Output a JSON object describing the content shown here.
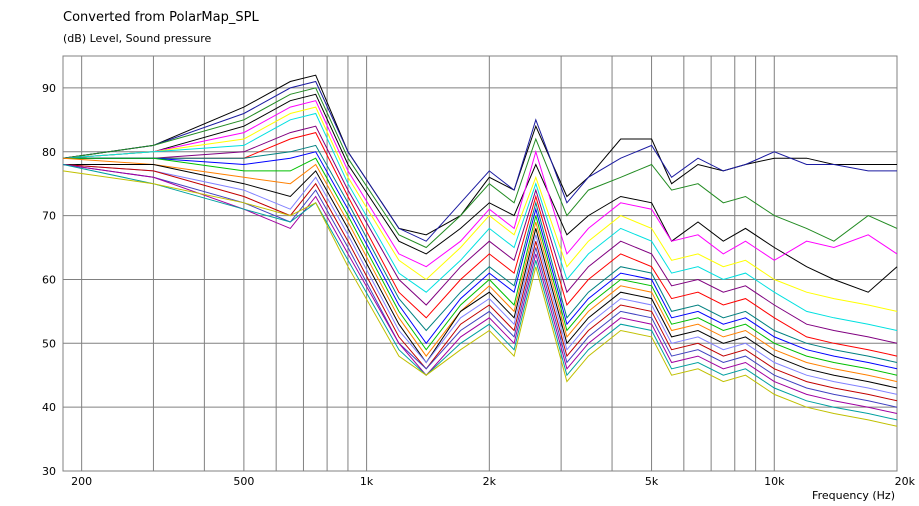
{
  "chart_data": {
    "type": "line",
    "title": "Converted from PolarMap_SPL",
    "ylabel": "(dB)  Level, Sound pressure",
    "xlabel": "Frequency  (Hz)",
    "xscale": "log",
    "xlim": [
      180,
      20000
    ],
    "ylim": [
      30,
      95
    ],
    "grid": true,
    "x_tick_labels": [
      {
        "value": 200,
        "label": "200"
      },
      {
        "value": 500,
        "label": "500"
      },
      {
        "value": 1000,
        "label": "1k"
      },
      {
        "value": 2000,
        "label": "2k"
      },
      {
        "value": 5000,
        "label": "5k"
      },
      {
        "value": 10000,
        "label": "10k"
      },
      {
        "value": 20000,
        "label": "20k"
      }
    ],
    "y_ticks": [
      30,
      40,
      50,
      60,
      70,
      80,
      90
    ],
    "series": [
      {
        "color": "#000000",
        "x": [
          180,
          300,
          500,
          650,
          750,
          900,
          1200,
          1400,
          1700,
          2000,
          2300,
          2600,
          3100,
          3500,
          4200,
          5000,
          5600,
          6500,
          7500,
          8500,
          10000,
          12000,
          14000,
          17000,
          20000
        ],
        "y": [
          79,
          81,
          87,
          91,
          92,
          80,
          68,
          67,
          70,
          76,
          74,
          84,
          73,
          76,
          82,
          82,
          75,
          78,
          77,
          78,
          79,
          79,
          78,
          78,
          78
        ]
      },
      {
        "color": "#1a1aa0",
        "x": [
          180,
          300,
          500,
          650,
          750,
          900,
          1200,
          1400,
          1700,
          2000,
          2300,
          2600,
          3100,
          3500,
          4200,
          5000,
          5600,
          6500,
          7500,
          8500,
          10000,
          12000,
          14000,
          17000,
          20000
        ],
        "y": [
          79,
          81,
          86,
          90,
          91,
          80,
          68,
          66,
          72,
          77,
          74,
          85,
          72,
          76,
          79,
          81,
          76,
          79,
          77,
          78,
          80,
          78,
          78,
          77,
          77
        ]
      },
      {
        "color": "#228b22",
        "x": [
          180,
          300,
          500,
          650,
          750,
          900,
          1200,
          1400,
          1700,
          2000,
          2300,
          2600,
          3100,
          3500,
          4200,
          5000,
          5600,
          6500,
          7500,
          8500,
          10000,
          12000,
          14000,
          17000,
          20000
        ],
        "y": [
          79,
          81,
          85,
          89,
          90,
          79,
          67,
          65,
          70,
          75,
          72,
          82,
          70,
          74,
          76,
          78,
          74,
          75,
          72,
          73,
          70,
          68,
          66,
          70,
          68
        ]
      },
      {
        "color": "#000000",
        "x": [
          180,
          300,
          500,
          650,
          750,
          900,
          1200,
          1400,
          1700,
          2000,
          2300,
          2600,
          3100,
          3500,
          4200,
          5000,
          5600,
          6500,
          7500,
          8500,
          10000,
          12000,
          14000,
          17000,
          20000
        ],
        "y": [
          79,
          80,
          84,
          88,
          89,
          78,
          66,
          64,
          68,
          72,
          70,
          78,
          67,
          70,
          73,
          72,
          66,
          69,
          66,
          68,
          65,
          62,
          60,
          58,
          62
        ]
      },
      {
        "color": "#ff00ff",
        "x": [
          180,
          300,
          500,
          650,
          750,
          900,
          1200,
          1400,
          1700,
          2000,
          2300,
          2600,
          3100,
          3500,
          4200,
          5000,
          5600,
          6500,
          7500,
          8500,
          10000,
          12000,
          14000,
          17000,
          20000
        ],
        "y": [
          79,
          80,
          83,
          87,
          88,
          77,
          64,
          62,
          66,
          71,
          68,
          80,
          64,
          68,
          72,
          71,
          66,
          67,
          64,
          66,
          63,
          66,
          65,
          67,
          64
        ]
      },
      {
        "color": "#ffff00",
        "x": [
          180,
          300,
          500,
          650,
          750,
          900,
          1200,
          1400,
          1700,
          2000,
          2300,
          2600,
          3100,
          3500,
          4200,
          5000,
          5600,
          6500,
          7500,
          8500,
          10000,
          12000,
          14000,
          17000,
          20000
        ],
        "y": [
          79,
          80,
          82,
          86,
          87,
          76,
          63,
          60,
          65,
          70,
          67,
          76,
          62,
          66,
          70,
          68,
          63,
          64,
          62,
          63,
          60,
          58,
          57,
          56,
          55
        ]
      },
      {
        "color": "#00e0e0",
        "x": [
          180,
          300,
          500,
          650,
          750,
          900,
          1200,
          1400,
          1700,
          2000,
          2300,
          2600,
          3100,
          3500,
          4200,
          5000,
          5600,
          6500,
          7500,
          8500,
          10000,
          12000,
          14000,
          17000,
          20000
        ],
        "y": [
          79,
          80,
          81,
          85,
          86,
          75,
          61,
          58,
          63,
          68,
          65,
          75,
          60,
          64,
          68,
          66,
          61,
          62,
          60,
          61,
          58,
          55,
          54,
          53,
          52
        ]
      },
      {
        "color": "#800080",
        "x": [
          180,
          300,
          500,
          650,
          750,
          900,
          1200,
          1400,
          1700,
          2000,
          2300,
          2600,
          3100,
          3500,
          4200,
          5000,
          5600,
          6500,
          7500,
          8500,
          10000,
          12000,
          14000,
          17000,
          20000
        ],
        "y": [
          79,
          79,
          80,
          83,
          84,
          74,
          60,
          56,
          62,
          66,
          63,
          74,
          58,
          62,
          66,
          64,
          59,
          60,
          58,
          59,
          56,
          53,
          52,
          51,
          50
        ]
      },
      {
        "color": "#ff0000",
        "x": [
          180,
          300,
          500,
          650,
          750,
          900,
          1200,
          1400,
          1700,
          2000,
          2300,
          2600,
          3100,
          3500,
          4200,
          5000,
          5600,
          6500,
          7500,
          8500,
          10000,
          12000,
          14000,
          17000,
          20000
        ],
        "y": [
          79,
          79,
          79,
          82,
          83,
          73,
          58,
          54,
          60,
          64,
          61,
          73,
          56,
          60,
          64,
          62,
          57,
          58,
          56,
          57,
          54,
          51,
          50,
          49,
          48
        ]
      },
      {
        "color": "#008080",
        "x": [
          180,
          300,
          500,
          650,
          750,
          900,
          1200,
          1400,
          1700,
          2000,
          2300,
          2600,
          3100,
          3500,
          4200,
          5000,
          5600,
          6500,
          7500,
          8500,
          10000,
          12000,
          14000,
          17000,
          20000
        ],
        "y": [
          79,
          79,
          79,
          80,
          81,
          72,
          57,
          52,
          58,
          62,
          59,
          72,
          54,
          58,
          62,
          61,
          55,
          56,
          54,
          55,
          52,
          50,
          49,
          48,
          47
        ]
      },
      {
        "color": "#0000ff",
        "x": [
          180,
          300,
          500,
          650,
          750,
          900,
          1200,
          1400,
          1700,
          2000,
          2300,
          2600,
          3100,
          3500,
          4200,
          5000,
          5600,
          6500,
          7500,
          8500,
          10000,
          12000,
          14000,
          17000,
          20000
        ],
        "y": [
          79,
          79,
          78,
          79,
          80,
          71,
          56,
          50,
          57,
          61,
          58,
          71,
          53,
          57,
          61,
          60,
          54,
          55,
          53,
          54,
          51,
          49,
          48,
          47,
          46
        ]
      },
      {
        "color": "#00c000",
        "x": [
          180,
          300,
          500,
          650,
          750,
          900,
          1200,
          1400,
          1700,
          2000,
          2300,
          2600,
          3100,
          3500,
          4200,
          5000,
          5600,
          6500,
          7500,
          8500,
          10000,
          12000,
          14000,
          17000,
          20000
        ],
        "y": [
          79,
          79,
          77,
          77,
          79,
          70,
          55,
          49,
          56,
          60,
          56,
          70,
          52,
          56,
          60,
          59,
          53,
          54,
          52,
          53,
          50,
          48,
          47,
          46,
          45
        ]
      },
      {
        "color": "#ff8000",
        "x": [
          180,
          300,
          500,
          650,
          750,
          900,
          1200,
          1400,
          1700,
          2000,
          2300,
          2600,
          3100,
          3500,
          4200,
          5000,
          5600,
          6500,
          7500,
          8500,
          10000,
          12000,
          14000,
          17000,
          20000
        ],
        "y": [
          79,
          78,
          76,
          75,
          78,
          69,
          54,
          48,
          55,
          59,
          55,
          69,
          51,
          55,
          59,
          58,
          52,
          53,
          51,
          52,
          49,
          47,
          46,
          45,
          44
        ]
      },
      {
        "color": "#000000",
        "x": [
          180,
          300,
          500,
          650,
          750,
          900,
          1200,
          1400,
          1700,
          2000,
          2300,
          2600,
          3100,
          3500,
          4200,
          5000,
          5600,
          6500,
          7500,
          8500,
          10000,
          12000,
          14000,
          17000,
          20000
        ],
        "y": [
          78,
          78,
          75,
          73,
          77,
          68,
          53,
          47,
          55,
          58,
          54,
          68,
          50,
          54,
          58,
          57,
          51,
          52,
          50,
          51,
          48,
          46,
          45,
          44,
          43
        ]
      },
      {
        "color": "#8080ff",
        "x": [
          180,
          300,
          500,
          650,
          750,
          900,
          1200,
          1400,
          1700,
          2000,
          2300,
          2600,
          3100,
          3500,
          4200,
          5000,
          5600,
          6500,
          7500,
          8500,
          10000,
          12000,
          14000,
          17000,
          20000
        ],
        "y": [
          78,
          77,
          74,
          71,
          76,
          67,
          52,
          47,
          54,
          57,
          53,
          67,
          49,
          53,
          57,
          56,
          50,
          51,
          49,
          50,
          47,
          45,
          44,
          43,
          42
        ]
      },
      {
        "color": "#c00000",
        "x": [
          180,
          300,
          500,
          650,
          750,
          900,
          1200,
          1400,
          1700,
          2000,
          2300,
          2600,
          3100,
          3500,
          4200,
          5000,
          5600,
          6500,
          7500,
          8500,
          10000,
          12000,
          14000,
          17000,
          20000
        ],
        "y": [
          78,
          77,
          73,
          70,
          75,
          66,
          51,
          46,
          53,
          56,
          52,
          66,
          48,
          52,
          56,
          55,
          49,
          50,
          48,
          49,
          46,
          44,
          43,
          42,
          41
        ]
      },
      {
        "color": "#4040c0",
        "x": [
          180,
          300,
          500,
          650,
          750,
          900,
          1200,
          1400,
          1700,
          2000,
          2300,
          2600,
          3100,
          3500,
          4200,
          5000,
          5600,
          6500,
          7500,
          8500,
          10000,
          12000,
          14000,
          17000,
          20000
        ],
        "y": [
          78,
          76,
          72,
          69,
          74,
          65,
          50,
          46,
          52,
          55,
          51,
          65,
          47,
          51,
          55,
          54,
          48,
          49,
          47,
          48,
          45,
          43,
          42,
          41,
          40
        ]
      },
      {
        "color": "#a000a0",
        "x": [
          180,
          300,
          500,
          650,
          750,
          900,
          1200,
          1400,
          1700,
          2000,
          2300,
          2600,
          3100,
          3500,
          4200,
          5000,
          5600,
          6500,
          7500,
          8500,
          10000,
          12000,
          14000,
          17000,
          20000
        ],
        "y": [
          78,
          76,
          71,
          68,
          73,
          64,
          50,
          45,
          51,
          54,
          50,
          64,
          46,
          50,
          54,
          53,
          47,
          48,
          46,
          47,
          44,
          42,
          41,
          40,
          39
        ]
      },
      {
        "color": "#00a0a0",
        "x": [
          180,
          300,
          500,
          650,
          750,
          900,
          1200,
          1400,
          1700,
          2000,
          2300,
          2600,
          3100,
          3500,
          4200,
          5000,
          5600,
          6500,
          7500,
          8500,
          10000,
          12000,
          14000,
          17000,
          20000
        ],
        "y": [
          78,
          75,
          71,
          69,
          72,
          63,
          49,
          45,
          50,
          53,
          49,
          63,
          45,
          49,
          53,
          52,
          46,
          47,
          45,
          46,
          43,
          41,
          40,
          39,
          38
        ]
      },
      {
        "color": "#c0c000",
        "x": [
          180,
          300,
          500,
          650,
          750,
          900,
          1200,
          1400,
          1700,
          2000,
          2300,
          2600,
          3100,
          3500,
          4200,
          5000,
          5600,
          6500,
          7500,
          8500,
          10000,
          12000,
          14000,
          17000,
          20000
        ],
        "y": [
          77,
          75,
          72,
          70,
          72,
          62,
          48,
          45,
          49,
          52,
          48,
          62,
          44,
          48,
          52,
          51,
          45,
          46,
          44,
          45,
          42,
          40,
          39,
          38,
          37
        ]
      }
    ]
  }
}
